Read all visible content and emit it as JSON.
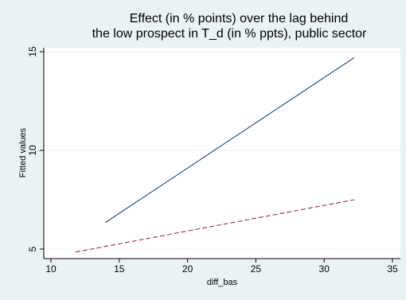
{
  "chart_data": {
    "type": "line",
    "title": "Effect (in % points) over the lag behind",
    "subtitle": "the low prospect in T_d (in % ppts), public sector",
    "xlabel": "diff_bas",
    "ylabel": "Fitted values",
    "xlim": [
      10,
      35
    ],
    "ylim": [
      5,
      15
    ],
    "xticks": [
      "10",
      "15",
      "20",
      "25",
      "30",
      "35"
    ],
    "yticks": [
      "5",
      "10",
      "15"
    ],
    "grid": true,
    "legend": "none",
    "series": [
      {
        "style": "solid",
        "color": "#1a476f",
        "x": [
          14,
          32.2
        ],
        "y": [
          6.35,
          14.7
        ]
      },
      {
        "style": "dashed",
        "color": "#90353b",
        "x": [
          11.8,
          32.2
        ],
        "y": [
          4.85,
          7.5
        ]
      }
    ],
    "colors": {
      "background": "#eaf2f3",
      "plot_area": "#ffffff",
      "grid": "#eaf2f3",
      "axis": "#000000"
    }
  }
}
